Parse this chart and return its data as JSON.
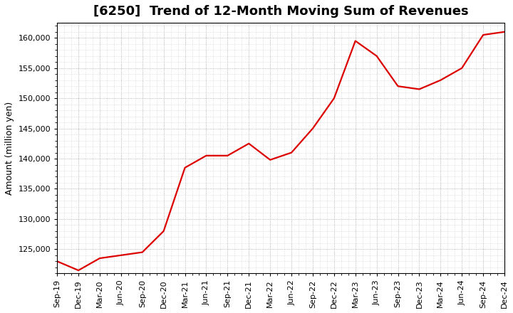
{
  "title": "[6250]  Trend of 12-Month Moving Sum of Revenues",
  "ylabel": "Amount (million yen)",
  "line_color": "#dd0000",
  "background_color": "#ffffff",
  "plot_bg_color": "#ffffff",
  "grid_color": "#999999",
  "ylim": [
    121000,
    162500
  ],
  "yticks": [
    125000,
    130000,
    135000,
    140000,
    145000,
    150000,
    155000,
    160000
  ],
  "x_labels": [
    "Sep-19",
    "Dec-19",
    "Mar-20",
    "Jun-20",
    "Sep-20",
    "Dec-20",
    "Mar-21",
    "Jun-21",
    "Sep-21",
    "Dec-21",
    "Mar-22",
    "Jun-22",
    "Sep-22",
    "Dec-22",
    "Mar-23",
    "Jun-23",
    "Sep-23",
    "Dec-23",
    "Mar-24",
    "Jun-24",
    "Sep-24",
    "Dec-24"
  ],
  "values": [
    123000,
    121500,
    123500,
    124000,
    124500,
    128000,
    138500,
    140500,
    140500,
    142500,
    139800,
    141000,
    145000,
    150000,
    159500,
    157000,
    152000,
    151500,
    153000,
    155000,
    160500,
    161000
  ],
  "title_fontsize": 13,
  "ylabel_fontsize": 9,
  "tick_fontsize": 8,
  "linewidth": 1.6
}
